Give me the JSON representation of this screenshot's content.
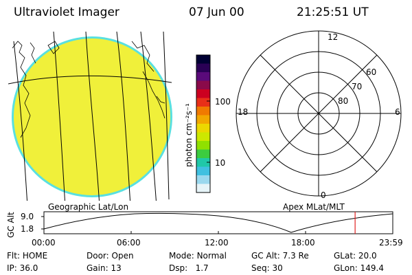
{
  "header": {
    "instrument": "Ultraviolet Imager",
    "date": "07 Jun 00",
    "time": "21:25:51 UT"
  },
  "colorbar": {
    "unit_label": "photon cm⁻²s⁻¹",
    "tick_labels": [
      "100",
      "10"
    ],
    "colors": [
      "#000033",
      "#2a0055",
      "#5a0a7a",
      "#8a0a4a",
      "#cc0020",
      "#e83018",
      "#f07a00",
      "#f2a800",
      "#ecd800",
      "#cde800",
      "#90e000",
      "#3ccc40",
      "#20c8a8",
      "#40c0e0",
      "#9ad8ee",
      "#e6f4f8"
    ]
  },
  "geo_panel": {
    "label": "Geographic Lat/Lon",
    "disk_color": "#f0f03a",
    "rim_color": "#59e0e0"
  },
  "polar_panel": {
    "label": "Apex MLat/MLT",
    "mlt_labels": {
      "top": "12",
      "left": "18",
      "right": "6",
      "bottom": "0"
    },
    "lat_labels": [
      "60",
      "70",
      "80"
    ]
  },
  "timeline": {
    "axis_label": "GC Alt",
    "y_ticks": [
      "9.0",
      "1.8"
    ],
    "x_ticks": [
      "00:00",
      "06:00",
      "12:00",
      "18:00",
      "23:59"
    ],
    "current_time_fraction": 0.892,
    "marker_color": "#e02020"
  },
  "status": {
    "row1": [
      {
        "label": "Flt:",
        "value": "HOME"
      },
      {
        "label": "Door:",
        "value": "Open"
      },
      {
        "label": "Mode:",
        "value": "Normal"
      },
      {
        "label": "GC Alt:",
        "value": "7.3 Re"
      },
      {
        "label": "GLat:",
        "value": "20.0"
      }
    ],
    "row2": [
      {
        "label": "IP:",
        "value": "36.0"
      },
      {
        "label": "Gain:",
        "value": "13"
      },
      {
        "label": "Dsp:",
        "value": "1.7"
      },
      {
        "label": "Seq:",
        "value": "30"
      },
      {
        "label": "GLon:",
        "value": "149.4"
      }
    ]
  }
}
